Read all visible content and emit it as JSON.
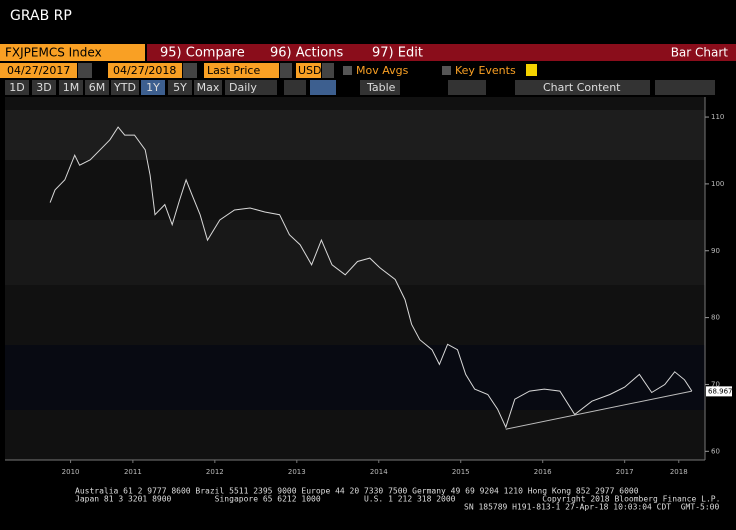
{
  "header": {
    "title": "GRAB  RP"
  },
  "toolbar": {
    "security": "FXJPEMCS Index",
    "compare": "95) Compare",
    "actions": "96) Actions",
    "edit": "97) Edit",
    "view": "Bar Chart"
  },
  "controls": {
    "start_date": "04/27/2017",
    "end_date": "04/27/2018",
    "field": "Last Price",
    "currency": "USD",
    "mov_avgs": "Mov Avgs",
    "key_events": "Key Events"
  },
  "periods": [
    "1D",
    "3D",
    "1M",
    "6M",
    "YTD",
    "1Y",
    "5Y",
    "Max"
  ],
  "selected_period_index": 5,
  "frequency": "Daily",
  "table": "Table",
  "chart_content": "Chart Content",
  "chart_data": {
    "type": "line",
    "x": [
      2010.49,
      2010.55,
      2010.67,
      2010.79,
      2010.85,
      2010.98,
      2011.1,
      2011.22,
      2011.32,
      2011.4,
      2011.52,
      2011.65,
      2011.71,
      2011.77,
      2011.89,
      2011.98,
      2012.07,
      2012.15,
      2012.22,
      2012.32,
      2012.41,
      2012.56,
      2012.74,
      2012.93,
      2013.11,
      2013.29,
      2013.41,
      2013.54,
      2013.68,
      2013.8,
      2013.93,
      2014.09,
      2014.24,
      2014.39,
      2014.51,
      2014.7,
      2014.82,
      2014.9,
      2015.0,
      2015.15,
      2015.24,
      2015.34,
      2015.46,
      2015.56,
      2015.67,
      2015.83,
      2015.95,
      2016.05,
      2016.16,
      2016.34,
      2016.52,
      2016.71,
      2016.89,
      2017.1,
      2017.32,
      2017.5,
      2017.68,
      2017.83,
      2017.99,
      2018.11,
      2018.23,
      2018.32
    ],
    "series": [
      {
        "color": "#d8d8d8",
        "values": [
          97.2,
          99.1,
          100.6,
          104.3,
          102.8,
          103.6,
          105.1,
          106.6,
          108.5,
          107.3,
          107.3,
          105.1,
          101.3,
          95.4,
          96.9,
          93.9,
          97.6,
          100.6,
          98.4,
          95.4,
          91.6,
          94.6,
          96.1,
          96.4,
          95.8,
          95.4,
          92.4,
          90.9,
          87.9,
          91.6,
          87.9,
          86.4,
          88.4,
          88.9,
          87.5,
          85.7,
          82.7,
          79.0,
          76.7,
          75.2,
          73.0,
          76.0,
          75.2,
          71.5,
          69.3,
          68.5,
          66.3,
          63.6,
          67.8,
          69.0,
          69.3,
          69.0,
          65.5,
          67.5,
          68.5,
          69.6,
          71.5,
          68.8,
          70.0,
          71.9,
          70.7,
          69.0
        ]
      }
    ],
    "trendline": {
      "color": "#bdbdbd",
      "x": [
        2016.05,
        2018.32
      ],
      "values": [
        63.3,
        69.0
      ]
    },
    "last_value": 68.967,
    "xlim": [
      2009.94,
      2018.48
    ],
    "ylim": [
      58.7,
      113
    ],
    "xticks": [
      {
        "value": 2010.74,
        "label": "2010"
      },
      {
        "value": 2011.5,
        "label": "2011"
      },
      {
        "value": 2012.5,
        "label": "2012"
      },
      {
        "value": 2013.5,
        "label": "2013"
      },
      {
        "value": 2014.5,
        "label": "2014"
      },
      {
        "value": 2015.5,
        "label": "2015"
      },
      {
        "value": 2016.5,
        "label": "2016"
      },
      {
        "value": 2017.5,
        "label": "2017"
      },
      {
        "value": 2018.16,
        "label": "2018"
      }
    ],
    "yticks": [
      60,
      70,
      80,
      90,
      100,
      110
    ]
  },
  "footer": [
    "Australia 61 2 9777 8600 Brazil 5511 2395 9000 Europe 44 20 7330 7500 Germany 49 69 9204 1210 Hong Kong 852 2977 6000",
    "Japan 81 3 3201 8900         Singapore 65 6212 1000         U.S. 1 212 318 2000                  Copyright 2018 Bloomberg Finance L.P.",
    "SN 185789 H191-813-1 27-Apr-18 10:03:04 CDT  GMT-5:00"
  ]
}
